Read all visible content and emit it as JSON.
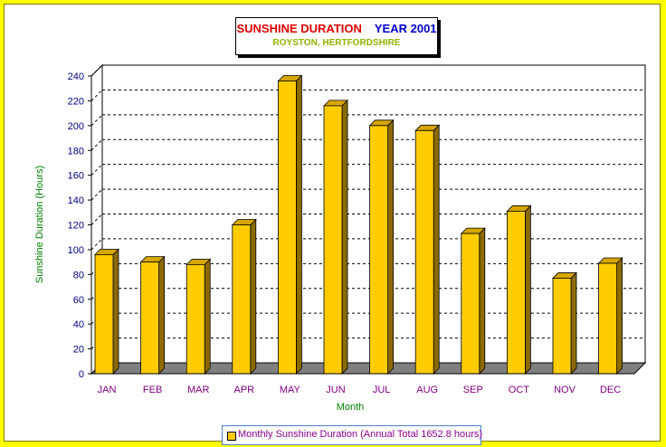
{
  "chart_data": {
    "type": "bar",
    "title": "SUNSHINE DURATION",
    "year": "YEAR 2001",
    "subtitle": "ROYSTON, HERTFORDSHIRE",
    "xlabel": "Month",
    "ylabel": "Sunshine Duration (Hours)",
    "categories": [
      "JAN",
      "FEB",
      "MAR",
      "APR",
      "MAY",
      "JUN",
      "JUL",
      "AUG",
      "SEP",
      "OCT",
      "NOV",
      "DEC"
    ],
    "series": [
      {
        "name": "Monthly Sunshine Duration (Annual Total 1652.8 hours)",
        "values": [
          96,
          90,
          88,
          120,
          236,
          216,
          200,
          196,
          113,
          131,
          77,
          89
        ]
      }
    ],
    "ylim": [
      0,
      240
    ],
    "yticks": [
      0,
      20,
      40,
      60,
      80,
      100,
      120,
      140,
      160,
      180,
      200,
      220,
      240
    ],
    "grid": true,
    "legend": "bottom-center",
    "colors": {
      "bar": "#ffcc00",
      "bar_side": "#8b6a00",
      "bar_top": "#d6a600",
      "floor": "#808080",
      "background": "#ffff00"
    }
  }
}
